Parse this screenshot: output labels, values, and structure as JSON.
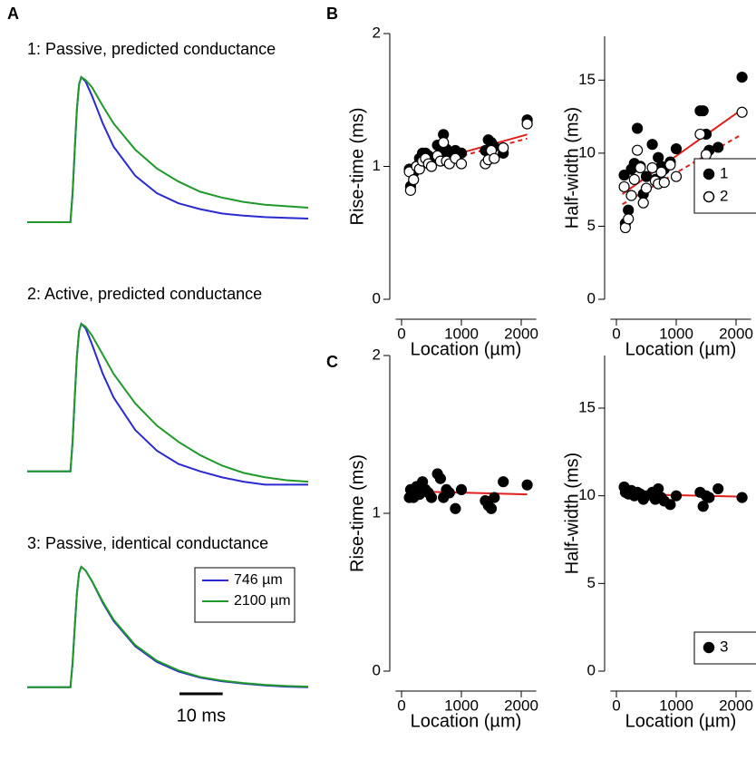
{
  "panel_labels": [
    "A",
    "B",
    "C"
  ],
  "chart_data": [
    {
      "type": "line",
      "title": "1: Passive, predicted conductance",
      "xlim": [
        0,
        65
      ],
      "ylim": [
        -0.1,
        1
      ],
      "x": [
        0,
        10,
        10.5,
        11,
        11.5,
        12,
        12.5,
        13.5,
        15,
        17.5,
        20,
        25,
        30,
        35,
        40,
        45,
        50,
        55,
        60,
        65
      ],
      "series": [
        {
          "color": "#2a2ad0",
          "values": [
            0,
            0,
            0.2,
            0.5,
            0.78,
            0.95,
            1,
            0.97,
            0.87,
            0.68,
            0.52,
            0.32,
            0.2,
            0.13,
            0.09,
            0.06,
            0.045,
            0.035,
            0.03,
            0.025
          ]
        },
        {
          "color": "#1f9a2a",
          "values": [
            0,
            0,
            0.2,
            0.5,
            0.78,
            0.95,
            1,
            0.98,
            0.93,
            0.8,
            0.68,
            0.5,
            0.37,
            0.28,
            0.21,
            0.17,
            0.14,
            0.12,
            0.11,
            0.1
          ]
        }
      ],
      "legend": false
    },
    {
      "type": "line",
      "title": "2: Active, predicted conductance",
      "xlim": [
        0,
        65
      ],
      "ylim": [
        -0.1,
        1
      ],
      "x": [
        0,
        10,
        10.5,
        11,
        11.5,
        12,
        12.5,
        13.5,
        15,
        17.5,
        20,
        25,
        30,
        35,
        40,
        45,
        50,
        55,
        60,
        65
      ],
      "series": [
        {
          "color": "#2a2ad0",
          "values": [
            0,
            0,
            0.2,
            0.5,
            0.78,
            0.95,
            1,
            0.97,
            0.86,
            0.66,
            0.5,
            0.28,
            0.14,
            0.05,
            0,
            -0.04,
            -0.07,
            -0.09,
            -0.09,
            -0.09
          ]
        },
        {
          "color": "#1f9a2a",
          "values": [
            0,
            0,
            0.2,
            0.5,
            0.78,
            0.95,
            1,
            0.98,
            0.92,
            0.79,
            0.66,
            0.46,
            0.31,
            0.2,
            0.11,
            0.04,
            -0.01,
            -0.04,
            -0.06,
            -0.07
          ]
        }
      ],
      "legend": false
    },
    {
      "type": "line",
      "title": "3: Passive, identical conductance",
      "xlim": [
        0,
        65
      ],
      "ylim": [
        -0.1,
        1
      ],
      "x": [
        0,
        10,
        10.5,
        11,
        11.5,
        12,
        12.5,
        13.5,
        15,
        17.5,
        20,
        25,
        30,
        35,
        40,
        45,
        50,
        55,
        60,
        65
      ],
      "series": [
        {
          "name": "746 µm",
          "color": "#2a2ad0",
          "values": [
            0,
            0,
            0.2,
            0.5,
            0.78,
            0.95,
            1,
            0.97,
            0.88,
            0.7,
            0.55,
            0.34,
            0.21,
            0.13,
            0.08,
            0.05,
            0.03,
            0.015,
            0.005,
            0
          ]
        },
        {
          "name": "2100 µm",
          "color": "#1f9a2a",
          "values": [
            0,
            0,
            0.2,
            0.5,
            0.78,
            0.95,
            1,
            0.97,
            0.88,
            0.71,
            0.56,
            0.35,
            0.22,
            0.14,
            0.085,
            0.055,
            0.035,
            0.02,
            0.01,
            0.005
          ]
        }
      ],
      "legend": true,
      "scale_bar": {
        "value": 10,
        "label": "10 ms"
      }
    },
    {
      "type": "scatter",
      "xlabel": "Location (µm)",
      "ylabel": "Rise-time (ms)",
      "xlim": [
        -100,
        2250
      ],
      "ylim": [
        0,
        2
      ],
      "xticks": [
        0,
        1000,
        2000
      ],
      "yticks": [
        0,
        1,
        2
      ],
      "x": [
        130,
        150,
        200,
        250,
        300,
        350,
        400,
        450,
        500,
        600,
        650,
        700,
        750,
        800,
        900,
        1000,
        1400,
        1450,
        1500,
        1550,
        1700,
        2100
      ],
      "series": [
        {
          "marker": "filled",
          "color": "#000000",
          "values": [
            0.98,
            0.85,
            0.95,
            1.0,
            1.06,
            1.1,
            1.1,
            1.08,
            1.05,
            1.16,
            1.1,
            1.24,
            1.13,
            1.08,
            1.12,
            1.1,
            1.12,
            1.2,
            1.18,
            1.15,
            1.1,
            1.35
          ]
        },
        {
          "marker": "open",
          "color": "#000000",
          "values": [
            0.96,
            0.82,
            0.9,
            1.0,
            0.98,
            1.04,
            1.06,
            1.02,
            1.0,
            1.08,
            1.04,
            1.18,
            1.04,
            1.02,
            1.06,
            1.02,
            1.02,
            1.05,
            1.12,
            1.06,
            1.14,
            1.32
          ]
        }
      ],
      "fits": [
        {
          "x": [
            100,
            2100
          ],
          "values": [
            0.99,
            1.24
          ],
          "color": "#e0201c",
          "dashed": false
        },
        {
          "x": [
            100,
            2100
          ],
          "values": [
            0.97,
            1.21
          ],
          "color": "#e0201c",
          "dashed": true
        }
      ]
    },
    {
      "type": "scatter",
      "xlabel": "Location (µm)",
      "ylabel": "Half-width (ms)",
      "xlim": [
        -100,
        2250
      ],
      "ylim": [
        0,
        18
      ],
      "xticks": [
        0,
        1000,
        2000
      ],
      "yticks": [
        0,
        5,
        10,
        15
      ],
      "x": [
        130,
        150,
        200,
        250,
        300,
        350,
        400,
        450,
        500,
        600,
        650,
        700,
        750,
        800,
        900,
        1000,
        1400,
        1450,
        1500,
        1550,
        1700,
        2100
      ],
      "series": [
        {
          "name": "1",
          "marker": "filled",
          "color": "#000000",
          "values": [
            8.5,
            5.2,
            6.1,
            8.9,
            9.3,
            11.7,
            9.1,
            7.2,
            8.4,
            10.6,
            8.2,
            9.7,
            9.1,
            8.9,
            9.4,
            10.3,
            12.9,
            12.9,
            11.3,
            10.2,
            10.4,
            15.2
          ]
        },
        {
          "name": "2",
          "marker": "open",
          "color": "#000000",
          "values": [
            7.7,
            4.9,
            5.5,
            7.1,
            8.2,
            10.2,
            9.0,
            6.6,
            7.6,
            9.0,
            8.1,
            7.9,
            8.7,
            8.0,
            9.2,
            8.4,
            11.3,
            8.6,
            9.9,
            9.0,
            9.0,
            12.8
          ]
        }
      ],
      "fits": [
        {
          "x": [
            100,
            2100
          ],
          "values": [
            7.2,
            13.0
          ],
          "color": "#e0201c",
          "dashed": false
        },
        {
          "x": [
            100,
            2100
          ],
          "values": [
            6.5,
            11.3
          ],
          "color": "#e0201c",
          "dashed": true
        }
      ],
      "legend": "center right"
    },
    {
      "type": "scatter",
      "xlabel": "Location (µm)",
      "ylabel": "Rise-time (ms)",
      "xlim": [
        -100,
        2250
      ],
      "ylim": [
        0,
        2
      ],
      "xticks": [
        0,
        1000,
        2000
      ],
      "yticks": [
        0,
        1,
        2
      ],
      "x": [
        130,
        150,
        200,
        250,
        300,
        350,
        400,
        450,
        500,
        600,
        650,
        700,
        750,
        800,
        900,
        1000,
        1400,
        1450,
        1500,
        1550,
        1700,
        2100
      ],
      "series": [
        {
          "marker": "filled",
          "color": "#000000",
          "values": [
            1.1,
            1.15,
            1.1,
            1.17,
            1.12,
            1.2,
            1.15,
            1.13,
            1.1,
            1.25,
            1.22,
            1.1,
            1.15,
            1.13,
            1.03,
            1.15,
            1.08,
            1.05,
            1.03,
            1.1,
            1.2,
            1.18
          ]
        }
      ],
      "fits": [
        {
          "x": [
            100,
            2100
          ],
          "values": [
            1.14,
            1.12
          ],
          "color": "#e0201c",
          "dashed": false
        }
      ]
    },
    {
      "type": "scatter",
      "xlabel": "Location (µm)",
      "ylabel": "Half-width (ms)",
      "xlim": [
        -100,
        2250
      ],
      "ylim": [
        0,
        18
      ],
      "xticks": [
        0,
        1000,
        2000
      ],
      "yticks": [
        0,
        5,
        10,
        15
      ],
      "x": [
        130,
        150,
        200,
        250,
        300,
        350,
        400,
        450,
        500,
        600,
        650,
        700,
        750,
        800,
        900,
        1000,
        1400,
        1450,
        1500,
        1550,
        1700,
        2100
      ],
      "series": [
        {
          "name": "3",
          "marker": "filled",
          "color": "#000000",
          "values": [
            10.5,
            10.2,
            10.1,
            10.3,
            10.0,
            10.2,
            10.1,
            9.8,
            10.0,
            10.2,
            9.8,
            10.4,
            9.9,
            9.7,
            9.5,
            10.0,
            10.2,
            9.4,
            10.0,
            9.9,
            10.4,
            9.9
          ]
        }
      ],
      "fits": [
        {
          "x": [
            100,
            2100
          ],
          "values": [
            10.1,
            9.95
          ],
          "color": "#e0201c",
          "dashed": false
        }
      ],
      "legend": "lower right"
    }
  ]
}
